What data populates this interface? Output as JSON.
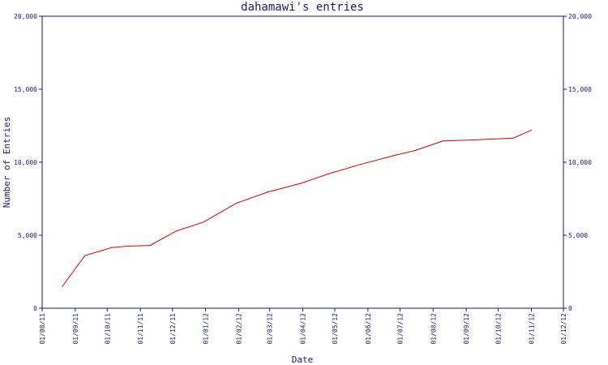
{
  "chart_data": {
    "type": "line",
    "title": "dahamawi's entries",
    "xlabel": "Date",
    "ylabel": "Number of Entries",
    "ylim": [
      0,
      20000
    ],
    "y_ticks": [
      "0",
      "5,000",
      "10,000",
      "15,000",
      "20,000"
    ],
    "y_tick_values": [
      0,
      5000,
      10000,
      15000,
      20000
    ],
    "x_ticks": [
      "01/08/11",
      "01/09/11",
      "01/10/11",
      "01/11/11",
      "01/12/11",
      "01/01/12",
      "01/02/12",
      "01/03/12",
      "01/04/12",
      "01/05/12",
      "01/06/12",
      "01/07/12",
      "01/08/12",
      "01/09/12",
      "01/10/12",
      "01/11/12",
      "01/12/12"
    ],
    "grid": false,
    "series": [
      {
        "color": "#e00000",
        "points": [
          {
            "x": "2011-08-20",
            "y": 1500
          },
          {
            "x": "2011-09-10",
            "y": 3600
          },
          {
            "x": "2011-10-05",
            "y": 4150
          },
          {
            "x": "2011-10-20",
            "y": 4250
          },
          {
            "x": "2011-11-10",
            "y": 4300
          },
          {
            "x": "2011-12-05",
            "y": 5300
          },
          {
            "x": "2011-12-30",
            "y": 5900
          },
          {
            "x": "2012-01-30",
            "y": 7200
          },
          {
            "x": "2012-02-28",
            "y": 7950
          },
          {
            "x": "2012-03-30",
            "y": 8550
          },
          {
            "x": "2012-04-25",
            "y": 9200
          },
          {
            "x": "2012-05-25",
            "y": 9850
          },
          {
            "x": "2012-06-25",
            "y": 10450
          },
          {
            "x": "2012-07-15",
            "y": 10800
          },
          {
            "x": "2012-08-10",
            "y": 11450
          },
          {
            "x": "2012-09-15",
            "y": 11550
          },
          {
            "x": "2012-10-15",
            "y": 11650
          },
          {
            "x": "2012-11-01",
            "y": 12200
          }
        ]
      }
    ]
  }
}
